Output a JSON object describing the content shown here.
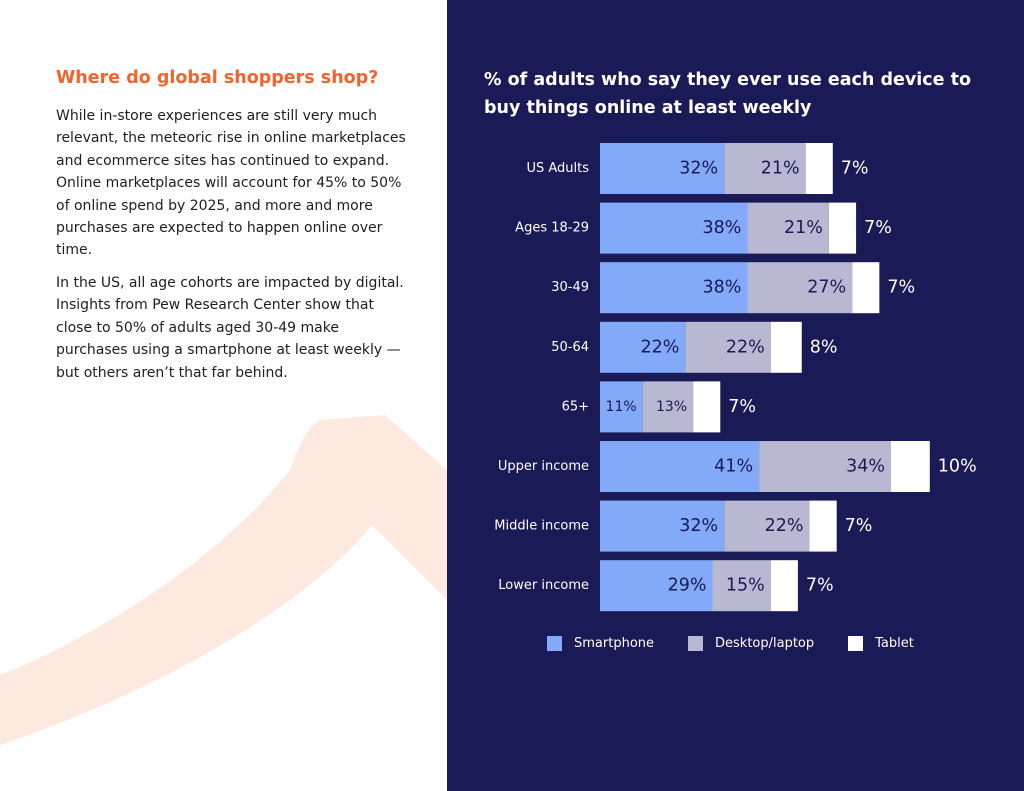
{
  "article": {
    "heading": "Where do global shoppers shop?",
    "paragraph1": "While in-store experiences are still very much relevant, the meteoric rise in online marketplaces and ecommerce sites has continued to expand. Online marketplaces will account for 45% to 50% of online spend by 2025, and more and more purchases are expected to happen online over time.",
    "paragraph2": "In the US, all age cohorts are impacted by digital. Insights from Pew Research Center show that close to 50% of adults aged 30-49 make purchases using a smartphone at least weekly — but others aren’t that far behind."
  },
  "colors": {
    "accent": "#f0642d",
    "panel_bg": "#1a1a56",
    "smartphone": "#82aaf8",
    "desktop": "#b8b8d2",
    "tablet": "#ffffff"
  },
  "chart_data": {
    "type": "bar",
    "orientation": "horizontal",
    "stacked": true,
    "title": "% of adults who say they ever use each device to buy things online at least weekly",
    "categories": [
      "US Adults",
      "Ages 18-29",
      "30-49",
      "50-64",
      "65+",
      "Upper income",
      "Middle income",
      "Lower income"
    ],
    "series": [
      {
        "name": "Smartphone",
        "color": "#82aaf8",
        "values": [
          32,
          38,
          38,
          22,
          11,
          41,
          32,
          29
        ]
      },
      {
        "name": "Desktop/laptop",
        "color": "#b8b8d2",
        "values": [
          21,
          21,
          27,
          22,
          13,
          34,
          22,
          15
        ]
      },
      {
        "name": "Tablet",
        "color": "#ffffff",
        "values": [
          7,
          7,
          7,
          8,
          7,
          10,
          7,
          7
        ]
      }
    ],
    "value_suffix": "%",
    "legend_position": "bottom",
    "grid": false
  }
}
